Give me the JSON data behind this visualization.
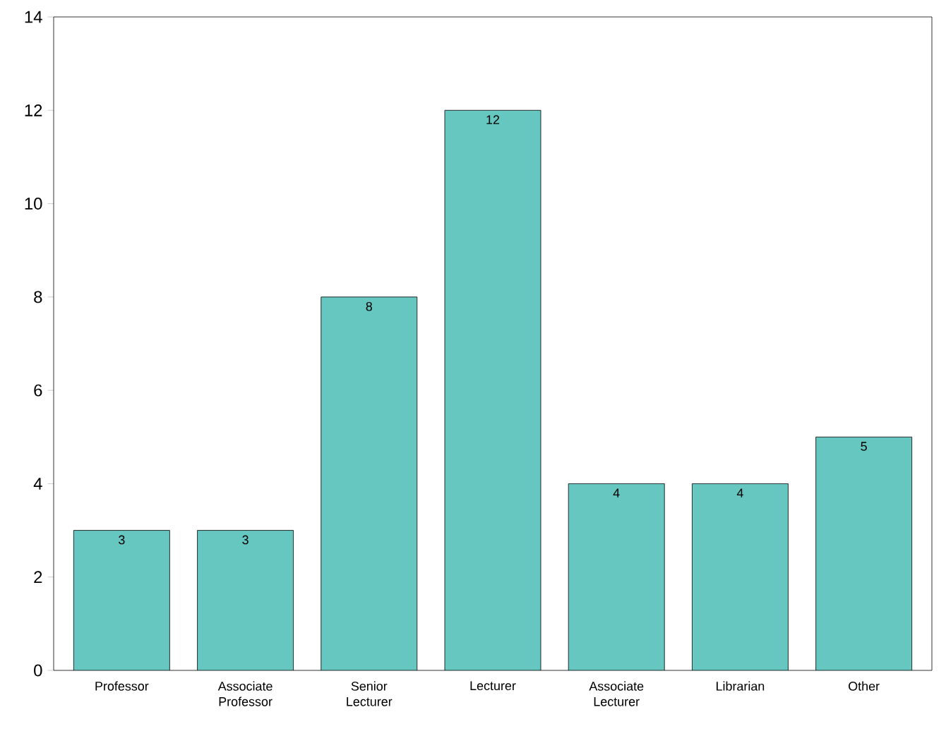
{
  "chart_data": {
    "type": "bar",
    "categories": [
      "Professor",
      "Associate Professor",
      "Senior Lecturer",
      "Lecturer",
      "Associate Lecturer",
      "Librarian",
      "Other"
    ],
    "values": [
      3,
      3,
      8,
      12,
      4,
      4,
      5
    ],
    "color": "#66c6c0",
    "ylim": [
      0,
      14
    ],
    "yticks": [
      0,
      2,
      4,
      6,
      8,
      10,
      12,
      14
    ],
    "data_labels": true,
    "grid": false
  }
}
